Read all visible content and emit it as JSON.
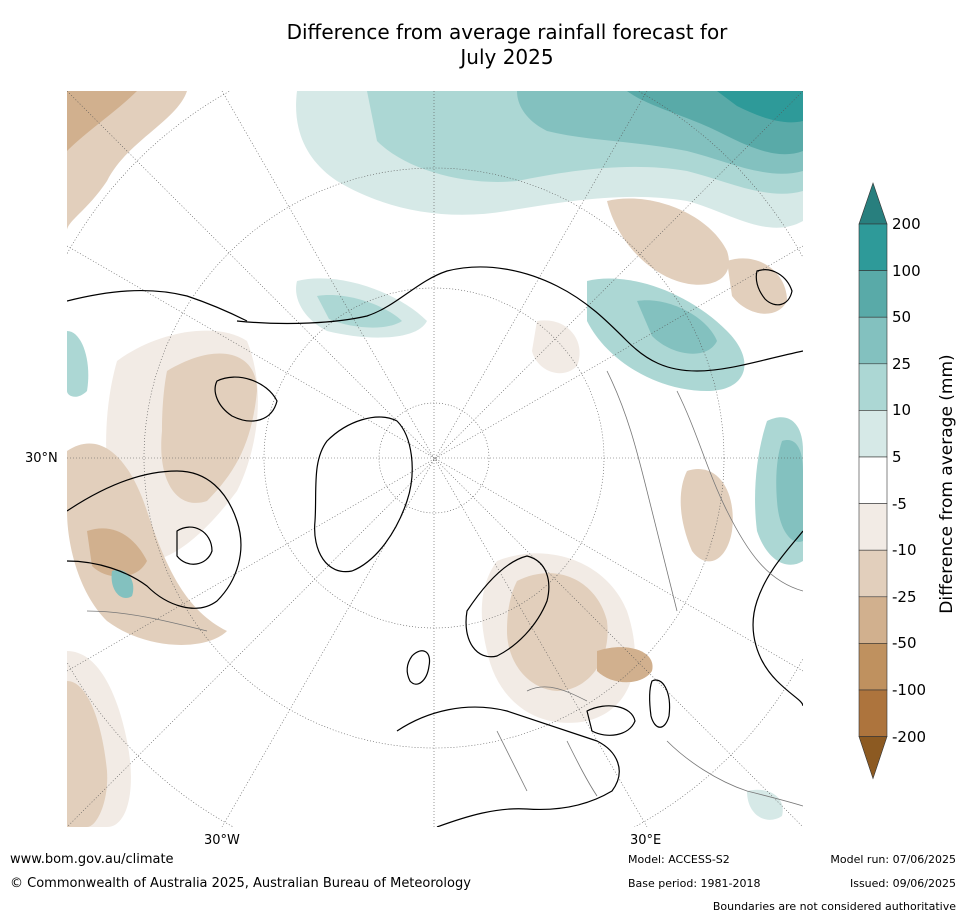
{
  "title_line1": "Difference from average rainfall forecast for",
  "title_line2": "July 2025",
  "map": {
    "projection": "north-polar-stereographic",
    "lat_label": "30°N",
    "lon_labels": [
      "30°W",
      "30°E"
    ],
    "colors": {
      "dry_strong": "#8c5a22",
      "dry_100": "#ad743d",
      "dry_50": "#bf915f",
      "dry_25": "#d1b08e",
      "dry_10": "#e2cfbc",
      "dry_5": "#f2ebe5",
      "neutral": "#ffffff",
      "wet_5": "#d6e9e7",
      "wet_10": "#acd7d4",
      "wet_25": "#83c1bf",
      "wet_50": "#59aaa8",
      "wet_100": "#2e9a99",
      "wet_strong": "#287f7e"
    }
  },
  "colorbar": {
    "title": "Difference from average (mm)",
    "labels": [
      "200",
      "100",
      "50",
      "25",
      "10",
      "5",
      "-5",
      "-10",
      "-25",
      "-50",
      "-100",
      "-200"
    ],
    "colors": [
      "#2e9a99",
      "#59aaa8",
      "#83c1bf",
      "#acd7d4",
      "#d6e9e7",
      "#ffffff",
      "#f2ebe5",
      "#e2cfbc",
      "#d1b08e",
      "#bf915f",
      "#ad743d"
    ],
    "top_color": "#287f7e",
    "bottom_color": "#8c5a22"
  },
  "footer": {
    "website": "www.bom.gov.au/climate",
    "copyright": "© Commonwealth of Australia 2025, Australian Bureau of Meteorology",
    "model": "Model: ACCESS-S2",
    "base_period": "Base period: 1981-2018",
    "model_run": "Model run: 07/06/2025",
    "issued": "Issued: 09/06/2025",
    "disclaimer": "Boundaries are not considered authoritative"
  }
}
